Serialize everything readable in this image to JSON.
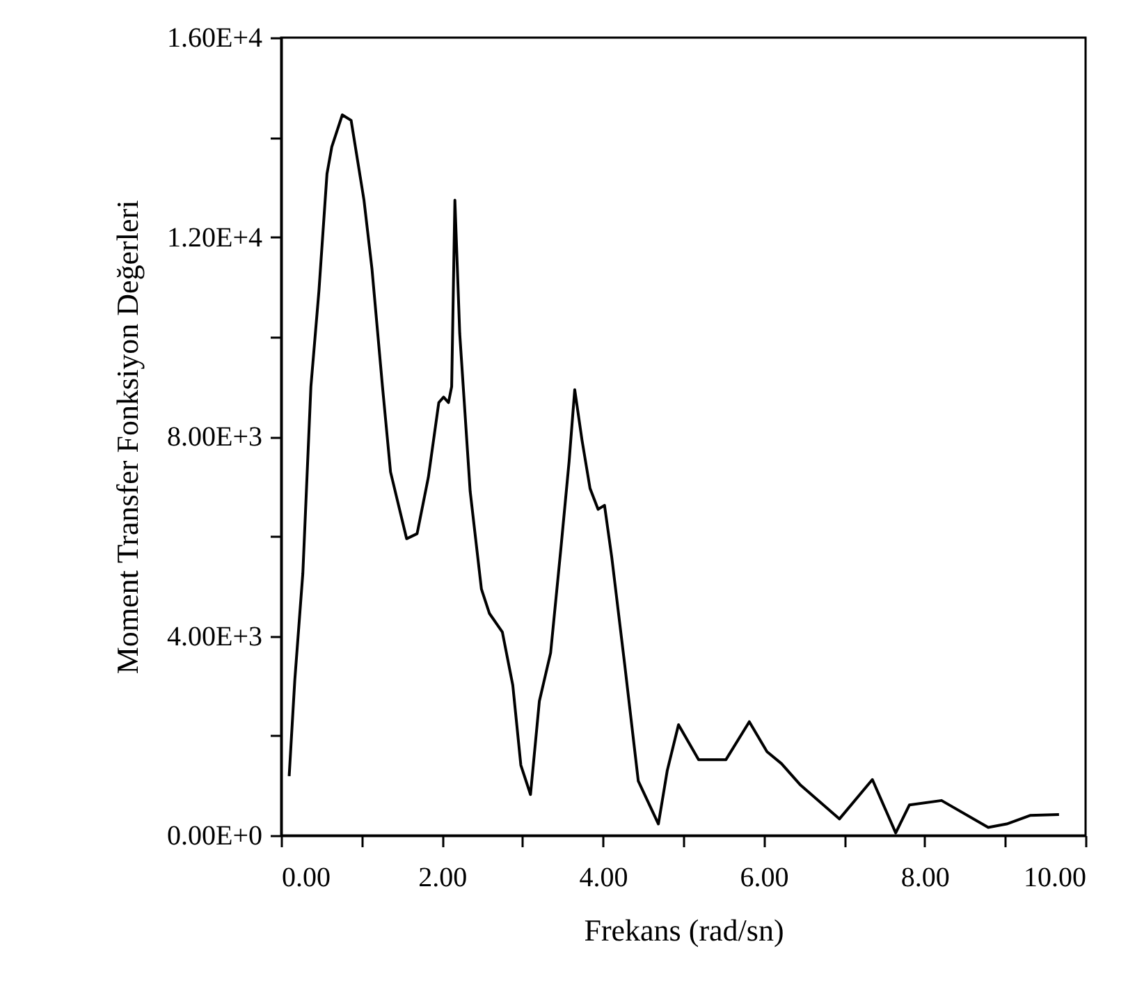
{
  "chart_data": {
    "type": "line",
    "xlabel": "Frekans (rad/sn)",
    "ylabel": "Moment Transfer Fonksiyon Değerleri",
    "xlim": [
      0,
      10
    ],
    "ylim": [
      0,
      16000
    ],
    "xticks": [
      {
        "value": 0,
        "label": "0.00"
      },
      {
        "value": 1,
        "label": null
      },
      {
        "value": 2,
        "label": "2.00"
      },
      {
        "value": 3,
        "label": null
      },
      {
        "value": 4,
        "label": "4.00"
      },
      {
        "value": 5,
        "label": null
      },
      {
        "value": 6,
        "label": "6.00"
      },
      {
        "value": 7,
        "label": null
      },
      {
        "value": 8,
        "label": "8.00"
      },
      {
        "value": 9,
        "label": null
      },
      {
        "value": 10,
        "label": "10.00"
      }
    ],
    "yticks": [
      {
        "value": 0,
        "label": "0.00E+0"
      },
      {
        "value": 2000,
        "label": null
      },
      {
        "value": 4000,
        "label": "4.00E+3"
      },
      {
        "value": 6000,
        "label": null
      },
      {
        "value": 8000,
        "label": "8.00E+3"
      },
      {
        "value": 10000,
        "label": null
      },
      {
        "value": 12000,
        "label": "1.20E+4"
      },
      {
        "value": 14000,
        "label": null
      },
      {
        "value": 16000,
        "label": "1.60E+4"
      }
    ],
    "grid": false,
    "marker": "none",
    "line_style": "solid",
    "series": [
      {
        "color": "#000000",
        "x": [
          0.1,
          0.17,
          0.27,
          0.37,
          0.47,
          0.57,
          0.63,
          0.76,
          0.87,
          1.03,
          1.13,
          1.26,
          1.36,
          1.56,
          1.69,
          1.83,
          1.96,
          2.02,
          2.08,
          2.12,
          2.16,
          2.22,
          2.35,
          2.49,
          2.59,
          2.75,
          2.88,
          2.98,
          3.1,
          3.21,
          3.35,
          3.48,
          3.58,
          3.65,
          3.74,
          3.84,
          3.94,
          4.02,
          4.11,
          4.27,
          4.44,
          4.69,
          4.8,
          4.94,
          5.19,
          5.53,
          5.82,
          6.04,
          6.22,
          6.45,
          6.94,
          7.35,
          7.64,
          7.81,
          8.21,
          8.79,
          9.02,
          9.31,
          9.67
        ],
        "values": [
          1190,
          3120,
          5260,
          9000,
          10920,
          13270,
          13810,
          14450,
          14340,
          12740,
          11350,
          9000,
          7290,
          5950,
          6050,
          7180,
          8680,
          8790,
          8680,
          9000,
          12740,
          10070,
          6900,
          4940,
          4450,
          4080,
          3010,
          1410,
          820,
          2690,
          3660,
          5790,
          7500,
          8940,
          7930,
          6960,
          6540,
          6620,
          5580,
          3440,
          1090,
          230,
          1300,
          2220,
          1520,
          1520,
          2280,
          1680,
          1440,
          1020,
          330,
          1120,
          50,
          610,
          700,
          160,
          230,
          400,
          420
        ]
      }
    ]
  }
}
